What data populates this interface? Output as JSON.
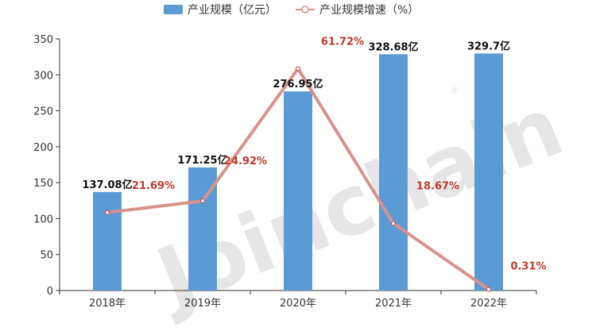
{
  "watermark": "Joinchain",
  "watermark_mark": "®",
  "chart_data": {
    "type": "bar",
    "categories": [
      "2018年",
      "2019年",
      "2020年",
      "2021年",
      "2022年"
    ],
    "ylim": [
      0,
      350
    ],
    "yticks": [
      0,
      50,
      100,
      150,
      200,
      250,
      300,
      350
    ],
    "grid": false,
    "legend_position": "top-center",
    "series": [
      {
        "name": "产业规模（亿元）",
        "kind": "bar",
        "color": "#5b9bd5",
        "values": [
          137.08,
          171.25,
          276.95,
          328.68,
          329.7
        ],
        "labels": [
          "137.08亿",
          "171.25亿",
          "276.95亿",
          "328.68亿",
          "329.7亿"
        ]
      },
      {
        "name": "产业规模增速（%）",
        "kind": "line",
        "color": "#d9918c",
        "label_color": "#c0392b",
        "values": [
          21.69,
          24.92,
          61.72,
          18.67,
          0.31
        ],
        "labels": [
          "21.69%",
          "24.92%",
          "61.72%",
          "18.67%",
          "0.31%"
        ]
      }
    ]
  }
}
